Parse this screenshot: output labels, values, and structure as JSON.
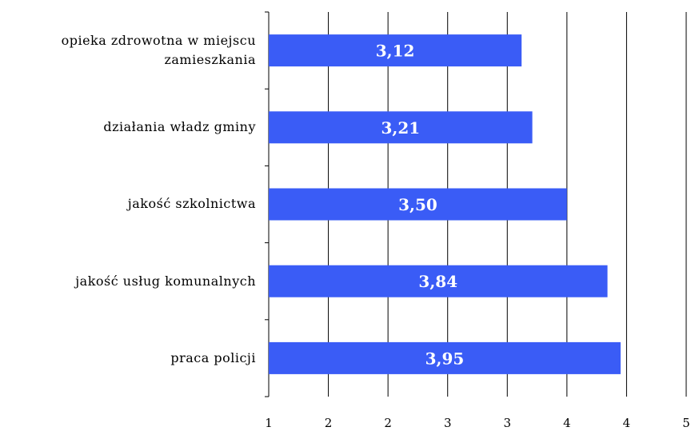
{
  "chart_data": {
    "type": "barh",
    "categories": [
      "opieka zdrowotna w miejscu zamieszkania",
      "działania władz gminy",
      "jakość szkolnictwa",
      "jakość usług komunalnych",
      "praca policji"
    ],
    "values": [
      3.12,
      3.21,
      3.5,
      3.84,
      3.95
    ],
    "value_labels": [
      "3,12",
      "3,21",
      "3,50",
      "3,84",
      "3,95"
    ],
    "color": "#3a5cf6",
    "xlim": [
      1,
      4.5
    ],
    "xticks": [
      1,
      {
        "value": 1.5,
        "label": "2"
      },
      2,
      {
        "value": 2.5,
        "label": "3"
      },
      3,
      {
        "value": 3.5,
        "label": "4"
      },
      4,
      {
        "value": 4.5,
        "label": "5"
      }
    ],
    "grid": true
  }
}
